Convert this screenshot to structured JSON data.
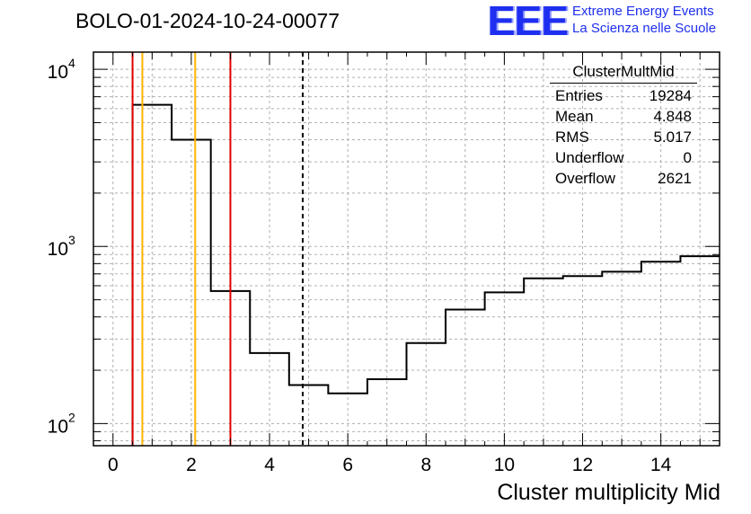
{
  "chart_data": {
    "type": "bar",
    "title": "BOLO-01-2024-10-24-00077",
    "xlabel": "Cluster multiplicity Mid",
    "ylabel": "",
    "x_scale": "linear",
    "y_scale": "log",
    "xlim": [
      -0.5,
      15.5
    ],
    "ylim": [
      75,
      12500
    ],
    "xticks": [
      "0",
      "2",
      "4",
      "6",
      "8",
      "10",
      "12",
      "14"
    ],
    "yticks": [
      "10^2",
      "10^3",
      "10^4"
    ],
    "grid": true,
    "bins": {
      "edges": [
        0.5,
        1.5,
        2.5,
        3.5,
        4.5,
        5.5,
        6.5,
        7.5,
        8.5,
        9.5,
        10.5,
        11.5,
        12.5,
        13.5,
        14.5,
        15.5
      ],
      "values": [
        6300,
        4000,
        560,
        250,
        165,
        148,
        178,
        285,
        440,
        550,
        660,
        680,
        720,
        820,
        880
      ]
    },
    "markers": [
      {
        "x": 0.5,
        "color": "#e00000",
        "style": "solid"
      },
      {
        "x": 3.0,
        "color": "#e00000",
        "style": "solid"
      },
      {
        "x": 0.75,
        "color": "#ffb400",
        "style": "solid"
      },
      {
        "x": 2.1,
        "color": "#ffb400",
        "style": "solid"
      },
      {
        "x": 4.848,
        "color": "#000000",
        "style": "dashed"
      }
    ],
    "stats": {
      "name": "ClusterMultMid",
      "rows": [
        {
          "label": "Entries",
          "value": "19284"
        },
        {
          "label": "Mean",
          "value": "4.848"
        },
        {
          "label": "RMS",
          "value": "5.017"
        },
        {
          "label": "Underflow",
          "value": "0"
        },
        {
          "label": "Overflow",
          "value": "2621"
        }
      ]
    }
  },
  "logo": {
    "letters": "EEE",
    "line1": "Extreme Energy Events",
    "line2": "La Scienza nelle Scuole",
    "color": "#1f2ff0"
  }
}
